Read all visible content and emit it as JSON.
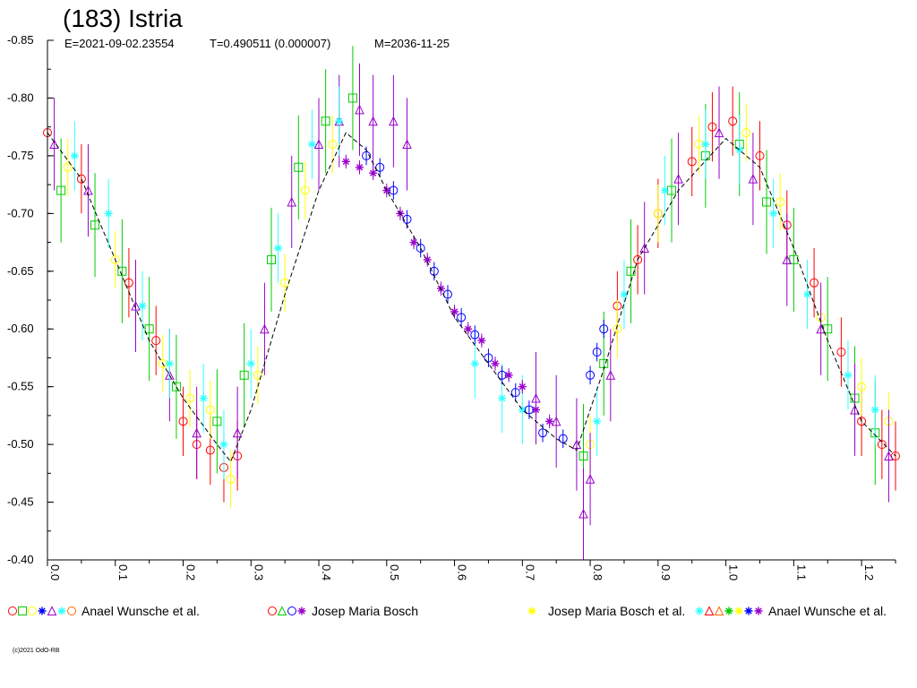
{
  "header": {
    "title": "(183) Istria",
    "epoch": "E=2021-09-02.23554",
    "period": "T=0.490511 (0.000007)",
    "mdate": "M=2036-11-25"
  },
  "copyright": "(c)2021 OdO-RB",
  "colors": {
    "red": "#ff0000",
    "green": "#00cc00",
    "yellow": "#ffff00",
    "blue": "#0000ff",
    "purple": "#9900cc",
    "cyan": "#33ffff",
    "lime": "#66ff00",
    "orange": "#ff6600",
    "dark_green": "#008800",
    "magenta": "#cc33cc",
    "black": "#000000"
  },
  "legend": [
    {
      "symbols": [
        "red-circle",
        "green-square",
        "yellow-circle",
        "blue-cross",
        "purple-triangle",
        "cyan-star",
        "orange-diamond"
      ],
      "label": "Anael Wunsche et al."
    },
    {
      "symbols": [
        "red-pentagon",
        "green-triangle-down",
        "blue-circle",
        "purple-tri-star"
      ],
      "label": "Josep Maria Bosch"
    },
    {
      "symbols": [
        "yellow-hash"
      ],
      "label": ""
    },
    {
      "symbols": [],
      "label": "Josep Maria Bosch et al."
    },
    {
      "symbols": [
        "cyan-asterisk",
        "red-triangle-left",
        "orange-triangle-right",
        "green-hourglass",
        "yellow-hash",
        "blue-asterisk",
        "purple-star"
      ],
      "label": "Anael Wunsche et al."
    }
  ],
  "chart_data": {
    "type": "scatter",
    "title": "(183) Istria",
    "xlabel": "",
    "ylabel": "",
    "xlim": [
      0.0,
      1.25
    ],
    "ylim": [
      -0.85,
      -0.4
    ],
    "y_inverted": true,
    "x_ticks": [
      "0.0",
      "0.1",
      "0.2",
      "0.3",
      "0.4",
      "0.5",
      "0.6",
      "0.7",
      "0.8",
      "0.9",
      "1.0",
      "1.1",
      "1.2"
    ],
    "y_ticks": [
      "-0.85",
      "-0.80",
      "-0.75",
      "-0.70",
      "-0.65",
      "-0.60",
      "-0.55",
      "-0.50",
      "-0.45",
      "-0.40"
    ],
    "grid": false,
    "fit_curve": {
      "name": "",
      "x": [
        0.0,
        0.05,
        0.1,
        0.15,
        0.2,
        0.25,
        0.27,
        0.3,
        0.35,
        0.4,
        0.44,
        0.47,
        0.5,
        0.55,
        0.6,
        0.65,
        0.7,
        0.75,
        0.78,
        0.82,
        0.87,
        0.93,
        1.0,
        1.05,
        1.1,
        1.15,
        1.2,
        1.25
      ],
      "y": [
        -0.77,
        -0.73,
        -0.66,
        -0.59,
        -0.54,
        -0.5,
        -0.485,
        -0.53,
        -0.63,
        -0.72,
        -0.77,
        -0.755,
        -0.72,
        -0.67,
        -0.61,
        -0.57,
        -0.53,
        -0.505,
        -0.495,
        -0.565,
        -0.66,
        -0.72,
        -0.765,
        -0.74,
        -0.67,
        -0.59,
        -0.52,
        -0.49
      ]
    },
    "series": [
      {
        "name": "Anael Wunsche et al.",
        "color": "#ff0000",
        "marker": "circle",
        "x": [
          0.0,
          0.05,
          0.12,
          0.16,
          0.2,
          0.22,
          0.24,
          0.26,
          0.28,
          0.84,
          0.87,
          0.9,
          0.95,
          0.98,
          1.01,
          1.05,
          1.09,
          1.13,
          1.17,
          1.2,
          1.23,
          1.25
        ],
        "y": [
          -0.77,
          -0.73,
          -0.64,
          -0.59,
          -0.52,
          -0.5,
          -0.495,
          -0.48,
          -0.49,
          -0.62,
          -0.66,
          -0.7,
          -0.745,
          -0.775,
          -0.78,
          -0.75,
          -0.69,
          -0.64,
          -0.58,
          -0.52,
          -0.5,
          -0.49
        ],
        "error": 0.03
      },
      {
        "name": "Anael Wunsche et al.",
        "color": "#00cc00",
        "marker": "square",
        "x": [
          0.02,
          0.07,
          0.11,
          0.15,
          0.19,
          0.25,
          0.29,
          0.33,
          0.37,
          0.41,
          0.45,
          0.79,
          0.82,
          0.86,
          0.92,
          0.97,
          1.02,
          1.06,
          1.1,
          1.15,
          1.19,
          1.22
        ],
        "y": [
          -0.72,
          -0.69,
          -0.65,
          -0.6,
          -0.55,
          -0.52,
          -0.56,
          -0.66,
          -0.74,
          -0.78,
          -0.8,
          -0.49,
          -0.57,
          -0.65,
          -0.72,
          -0.75,
          -0.76,
          -0.71,
          -0.66,
          -0.6,
          -0.54,
          -0.51
        ],
        "error": 0.045
      },
      {
        "name": "Anael Wunsche et al.",
        "color": "#ffff00",
        "marker": "circle",
        "x": [
          0.03,
          0.1,
          0.17,
          0.21,
          0.24,
          0.27,
          0.31,
          0.35,
          0.38,
          0.42,
          0.8,
          0.84,
          0.9,
          0.96,
          1.03,
          1.08,
          1.14,
          1.2,
          1.24
        ],
        "y": [
          -0.74,
          -0.66,
          -0.57,
          -0.54,
          -0.53,
          -0.47,
          -0.56,
          -0.64,
          -0.72,
          -0.76,
          -0.5,
          -0.6,
          -0.7,
          -0.76,
          -0.77,
          -0.71,
          -0.61,
          -0.55,
          -0.52
        ],
        "error": 0.025
      },
      {
        "name": "Anael Wunsche et al.",
        "color": "#9900cc",
        "marker": "triangle",
        "x": [
          0.01,
          0.06,
          0.13,
          0.18,
          0.22,
          0.28,
          0.32,
          0.36,
          0.4,
          0.43,
          0.46,
          0.48,
          0.51,
          0.53,
          0.72,
          0.75,
          0.78,
          0.79,
          0.8,
          0.83,
          0.88,
          0.93,
          0.99,
          1.04,
          1.09,
          1.14,
          1.19,
          1.24
        ],
        "y": [
          -0.76,
          -0.72,
          -0.62,
          -0.56,
          -0.51,
          -0.51,
          -0.6,
          -0.71,
          -0.76,
          -0.78,
          -0.79,
          -0.78,
          -0.78,
          -0.76,
          -0.54,
          -0.52,
          -0.5,
          -0.44,
          -0.47,
          -0.56,
          -0.67,
          -0.73,
          -0.77,
          -0.73,
          -0.66,
          -0.6,
          -0.53,
          -0.49
        ],
        "error": 0.04
      },
      {
        "name": "Anael Wunsche et al.",
        "color": "#33ffff",
        "marker": "star",
        "x": [
          0.04,
          0.09,
          0.14,
          0.18,
          0.23,
          0.26,
          0.3,
          0.34,
          0.39,
          0.43,
          0.63,
          0.67,
          0.7,
          0.81,
          0.85,
          0.91,
          0.97,
          1.02,
          1.07,
          1.12,
          1.18,
          1.22
        ],
        "y": [
          -0.75,
          -0.7,
          -0.62,
          -0.57,
          -0.54,
          -0.5,
          -0.57,
          -0.67,
          -0.76,
          -0.78,
          -0.57,
          -0.54,
          -0.53,
          -0.52,
          -0.63,
          -0.72,
          -0.76,
          -0.755,
          -0.7,
          -0.63,
          -0.56,
          -0.53
        ],
        "error": 0.03
      },
      {
        "name": "Josep Maria Bosch",
        "color": "#9900cc",
        "marker": "tri-star",
        "x": [
          0.44,
          0.46,
          0.48,
          0.5,
          0.52,
          0.54,
          0.56,
          0.58,
          0.6,
          0.62,
          0.64,
          0.66,
          0.68,
          0.7,
          0.72,
          0.74
        ],
        "y": [
          -0.745,
          -0.74,
          -0.735,
          -0.72,
          -0.7,
          -0.675,
          -0.66,
          -0.635,
          -0.615,
          -0.6,
          -0.59,
          -0.57,
          -0.56,
          -0.55,
          -0.53,
          -0.52
        ],
        "error": 0.006
      },
      {
        "name": "Josep Maria Bosch",
        "color": "#0000ff",
        "marker": "circle",
        "x": [
          0.47,
          0.49,
          0.51,
          0.53,
          0.55,
          0.57,
          0.59,
          0.61,
          0.63,
          0.65,
          0.67,
          0.69,
          0.71,
          0.73,
          0.76,
          0.8,
          0.81,
          0.82
        ],
        "y": [
          -0.75,
          -0.74,
          -0.72,
          -0.695,
          -0.67,
          -0.65,
          -0.63,
          -0.61,
          -0.595,
          -0.575,
          -0.56,
          -0.545,
          -0.53,
          -0.51,
          -0.505,
          -0.56,
          -0.58,
          -0.6
        ],
        "error": 0.008
      }
    ]
  }
}
